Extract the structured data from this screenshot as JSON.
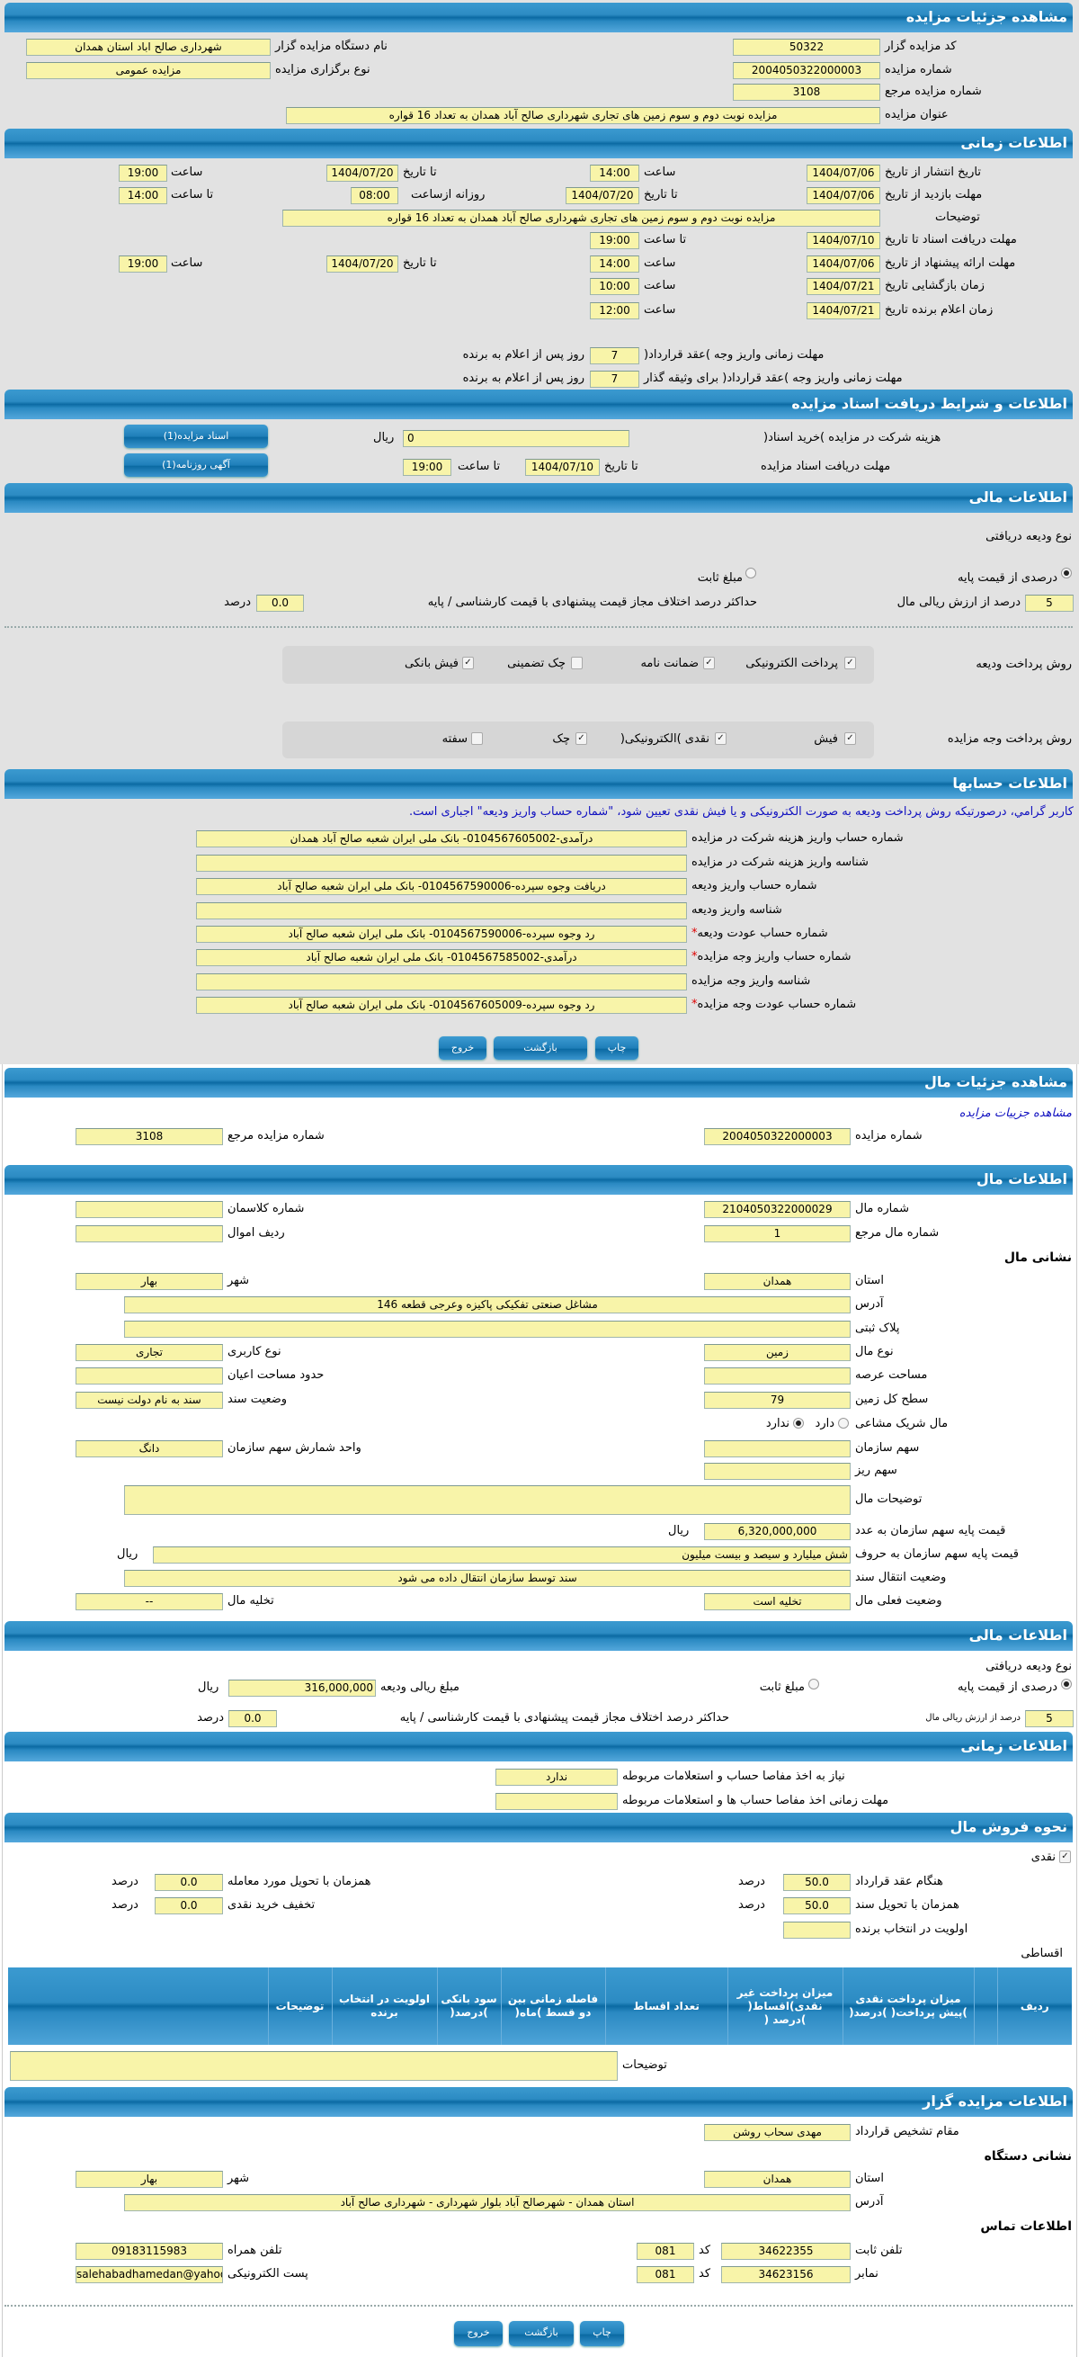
{
  "colors": {
    "header": "#0b6aa3",
    "field": "#f8f4a9",
    "background": "#e2e2e2",
    "notice": "#1010c0"
  },
  "auction": {
    "title": "مشاهده جزئیات مزایده",
    "code_label": "کد مزایده گزار",
    "code": "50322",
    "org_label": "نام دستگاه مزایده گزار",
    "org": "شهرداری صالح اباد استان همدان",
    "number_label": "شماره مزایده",
    "number": "2004050322000003",
    "type_label": "نوع برگزاری مزایده",
    "type": "مزایده عمومی",
    "ref_label": "شماره مزایده مرجع",
    "ref": "3108",
    "subject_label": "عنوان مزایده",
    "subject": "مزایده نوبت دوم و سوم زمین های تجاری شهرداری صالح آباد همدان به تعداد 16 قواره"
  },
  "timing": {
    "title": "اطلاعات زمانی",
    "publish_label": "تاریخ انتشار  از تاریخ",
    "publish_from": "1404/07/06",
    "hour": "ساعت",
    "publish_from_time": "14:00",
    "to_date": "تا تاریخ",
    "publish_to": "1404/07/20",
    "publish_to_time": "19:00",
    "visit_label": "مهلت بازدید  از تاریخ",
    "visit_from": "1404/07/06",
    "visit_to": "1404/07/20",
    "daily_from": "روزانه ازساعت",
    "visit_daily_from": "08:00",
    "to_hour": "تا ساعت",
    "visit_daily_to": "14:00",
    "desc_label": "توضیحات",
    "desc": "مزایده نوبت دوم و سوم زمین های تجاری شهرداری صالح آباد همدان به تعداد 16 قواره",
    "docs_label": "مهلت دریافت اسناد  تا تاریخ",
    "docs_to": "1404/07/10",
    "docs_to_time": "19:00",
    "offer_label": "مهلت ارائه پیشنهاد  از تاریخ",
    "offer_from": "1404/07/06",
    "offer_from_time": "14:00",
    "offer_to": "1404/07/20",
    "offer_to_time": "19:00",
    "open_label": "زمان بازگشایی    تاریخ",
    "open_date": "1404/07/21",
    "open_time": "10:00",
    "winner_label": "زمان اعلام برنده    تاریخ",
    "winner_date": "1404/07/21",
    "winner_time": "12:00",
    "pay1_label": "مهلت زمانی واریز وجه )عقد قرارداد(",
    "pay1": "7",
    "days_after": "روز پس از اعلام به برنده",
    "pay2_label": "مهلت زمانی واریز وجه )عقد قرارداد( برای وثیقه گذار",
    "pay2": "7"
  },
  "docs": {
    "title": "اطلاعات و شرایط دریافت اسناد مزایده",
    "cost_label": "هزینه شرکت در مزایده )خرید اسناد(",
    "cost": "0",
    "rial": "ریال",
    "btn_docs": "اسناد مزایده(1)",
    "btn_ad": "آگهی روزنامه(1)",
    "deadline_label": "مهلت دریافت اسناد مزایده",
    "to_date": "تا تاریخ",
    "deadline_date": "1404/07/10",
    "to_hour": "تا ساعت",
    "deadline_time": "19:00"
  },
  "finance": {
    "title": "اطلاعات مالی",
    "deposit_type": "نوع ودیعه دریافتی",
    "opt_percent": "درصدی از قیمت پایه",
    "opt_fixed": "مبلغ ثابت",
    "percent": "5",
    "percent_label": "درصد از ارزش ریالی مال",
    "max_diff_label": "حداکثر درصد اختلاف مجاز قیمت پیشنهادی با قیمت کارشناسی / پایه",
    "max_diff": "0.0",
    "percent_unit": "درصد",
    "deposit_method_label": "روش پرداخت ودیعه",
    "deposit_methods": [
      {
        "label": "پرداخت الکترونیکی",
        "checked": true
      },
      {
        "label": "ضمانت نامه",
        "checked": true
      },
      {
        "label": "چک تضمینی",
        "checked": false
      },
      {
        "label": "فیش بانکی",
        "checked": true
      }
    ],
    "payment_method_label": "روش پرداخت وجه مزایده",
    "payment_methods": [
      {
        "label": "فیش",
        "checked": true
      },
      {
        "label": "نقدی )الکترونیکی(",
        "checked": true
      },
      {
        "label": "چک",
        "checked": true
      },
      {
        "label": "سفته",
        "checked": false
      }
    ]
  },
  "accounts": {
    "title": "اطلاعات حسابها",
    "notice": "کاربر گرامي، درصورتیکه روش پرداخت ودیعه به صورت الکترونیکی و یا فیش نقدی تعیین شود، \"شماره حساب واریز ودیعه\" اجباری است.",
    "rows": [
      {
        "label": "شماره حساب واریز هزینه شرکت در مزایده",
        "value": "درآمدی-0104567605002- بانک ملی ایران شعبه صالح آباد همدان",
        "required": ""
      },
      {
        "label": "شناسه واریز هزینه شرکت در مزایده",
        "value": "",
        "required": ""
      },
      {
        "label": "شماره حساب واریز ودیعه",
        "value": "دریافت وجوه سپرده-0104567590006- بانک ملی ایران شعبه صالح آباد",
        "required": ""
      },
      {
        "label": "شناسه واریز ودیعه",
        "value": "",
        "required": ""
      },
      {
        "label": "شماره حساب عودت ودیعه",
        "value": "رد وجوه سپرده-0104567590006- بانک ملی ایران شعبه صالح آباد",
        "required": "*"
      },
      {
        "label": "شماره حساب واریز وجه مزایده",
        "value": "درآمدی-0104567585002- بانک ملی ایران شعبه صالح آباد",
        "required": "*"
      },
      {
        "label": "شناسه واریز وجه مزایده",
        "value": "",
        "required": ""
      },
      {
        "label": "شماره حساب عودت وجه مزایده",
        "value": "رد وجوه سپرده-0104567605009- بانک ملی ایران شعبه صالح آباد",
        "required": "*"
      }
    ]
  },
  "buttons": {
    "print": "چاپ",
    "back": "بازگشت",
    "exit": "خروج"
  },
  "item": {
    "title": "مشاهده جزئیات مال",
    "link": "مشاهده جزییات مزایده",
    "auction_no_label": "شماره مزایده",
    "auction_no": "2004050322000003",
    "ref_label": "شماره مزایده مرجع",
    "ref": "3108",
    "info_title": "اطلاعات مال",
    "item_no_label": "شماره مال",
    "item_no": "2104050322000029",
    "class_label": "شماره کلاسمان",
    "class_no": "",
    "ref_item_label": "شماره مال مرجع",
    "ref_item": "1",
    "row_label": "ردیف اموال",
    "row": "",
    "address_heading": "نشانی مال",
    "province_label": "استان",
    "province": "همدان",
    "city_label": "شهر",
    "city": "بهار",
    "address_label": "آدرس",
    "address": "مشاغل صنعتی تفکیکی پاکیزه وعرجی قطعه 146",
    "plate_label": "پلاک ثبتی",
    "plate": "",
    "kind_label": "نوع مال",
    "kind": "زمین",
    "usage_label": "نوع کاربری",
    "usage": "تجاری",
    "area_label": "مساحت عرصه",
    "area": "",
    "building_label": "حدود مساحت اعیان",
    "building": "",
    "land_label": "سطح کل زمین",
    "land": "79",
    "deed_label": "وضعیت سند",
    "deed": "سند به نام دولت نیست",
    "shared_label": "مال شریک مشاعی",
    "has": "دارد",
    "has_not": "ندارد",
    "org_share_label": "سهم سازمان",
    "org_share": "",
    "unit_label": "واحد شمارش سهم سازمان",
    "unit": "دانگ",
    "minor_label": "سهم ریز",
    "minor": "",
    "desc_label": "توضیحات مال",
    "desc": "",
    "price_label": "قیمت پایه سهم سازمان به عدد",
    "price": "6,320,000,000",
    "rial": "ریال",
    "price_words_label": "قیمت پایه سهم سازمان به حروف",
    "price_words": "شش میلیارد و سیصد و بیست میلیون",
    "transfer_label": "وضعیت انتقال سند",
    "transfer": "سند توسط سازمان انتقال داده می شود",
    "status_label": "وضعیت فعلی مال",
    "status": "تخلیه است",
    "evac_label": "تخلیه مال",
    "evac": "--"
  },
  "item_finance": {
    "title": "اطلاعات مالی",
    "deposit_type": "نوع ودیعه دریافتی",
    "opt_percent": "درصدی از قیمت پایه",
    "opt_fixed": "مبلغ ثابت",
    "amount_label": "مبلغ ریالی ودیعه",
    "amount": "316,000,000",
    "rial": "ریال",
    "percent": "5",
    "percent_label": "درصد از ارزش ریالی مال",
    "max_diff_label": "حداکثر درصد اختلاف مجاز قیمت پیشنهادی با قیمت کارشناسی / پایه",
    "max_diff": "0.0",
    "percent_unit": "درصد"
  },
  "item_timing": {
    "title": "اطلاعات زمانی",
    "need_label": "نیاز به اخذ مفاصا حساب و استعلامات مربوطه",
    "need": "ندارد",
    "deadline_label": "مهلت زمانی اخذ مفاصا حساب ها و استعلامات مربوطه",
    "deadline": ""
  },
  "sale": {
    "title": "نحوه فروش مال",
    "cash": "نقدی",
    "contract_label": "هنگام عقد قرارداد",
    "contract": "50.0",
    "unit": "درصد",
    "delivery_label": "همزمان با تحویل مورد معامله",
    "delivery": "0.0",
    "deed_label": "همزمان با تحویل سند",
    "deed": "50.0",
    "discount_label": "تخفیف خرید نقدی",
    "discount": "0.0",
    "priority_label": "اولویت در انتخاب برنده",
    "priority": "",
    "installment": "اقساطی",
    "columns": [
      "ردیف",
      "",
      "میزان پرداخت نقدی )پیش پرداخت( )درصد(",
      "میزان پرداخت غیر نقدی)اقساط( )درصد (",
      "تعداد اقساط",
      "فاصله زمانی بین دو قسط )ماه(",
      "سود بانکی )درصد(",
      "اولویت در انتخاب برنده",
      "توضیحات",
      ""
    ],
    "desc_label": "توضیحات",
    "desc": ""
  },
  "auctioneer": {
    "title": "اطلاعات مزایده گزار",
    "authority_label": "مقام تشخیص قرارداد",
    "authority": "مهدی سحاب روشن",
    "address_heading": "نشانی دستگاه",
    "province_label": "استان",
    "province": "همدان",
    "city_label": "شهر",
    "city": "بهار",
    "address_label": "آدرس",
    "address": "استان همدان - شهرصالح آباد بلوار شهرداری - شهرداری صالح آباد",
    "contact_heading": "اطلاعات تماس",
    "phone_label": "تلفن ثابت",
    "phone": "34622355",
    "code_label": "کد",
    "phone_code": "081",
    "mobile_label": "تلفن همراه",
    "mobile": "09183115983",
    "fax_label": "نمابر",
    "fax": "34623156",
    "fax_code": "081",
    "email_label": "پست الکترونیکی",
    "email": "salehabadhamedan@yahoo.com"
  }
}
